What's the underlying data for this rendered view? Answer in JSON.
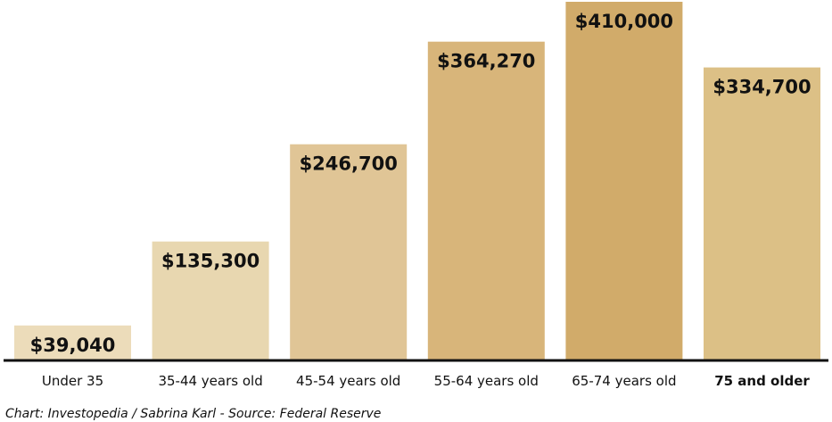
{
  "chart_data": {
    "type": "bar",
    "categories": [
      "Under 35",
      "35-44 years old",
      "45-54 years old",
      "55-64 years old",
      "65-74 years old",
      "75 and older"
    ],
    "values": [
      39040,
      135300,
      246700,
      364270,
      410000,
      334700
    ],
    "value_labels": [
      "$39,040",
      "$135,300",
      "$246,700",
      "$364,270",
      "$410,000",
      "$334,700"
    ],
    "emphasized_category_index": 5,
    "bar_colors": [
      "#ecdcba",
      "#e8d7b0",
      "#e0c596",
      "#d8b57a",
      "#d1ab6a",
      "#dcc086"
    ],
    "title": "",
    "xlabel": "",
    "ylabel": "",
    "ylim": [
      0,
      410000
    ],
    "grid": false,
    "axis_color": "#111111"
  },
  "credit": "Chart: Investopedia / Sabrina Karl - Source: Federal Reserve"
}
